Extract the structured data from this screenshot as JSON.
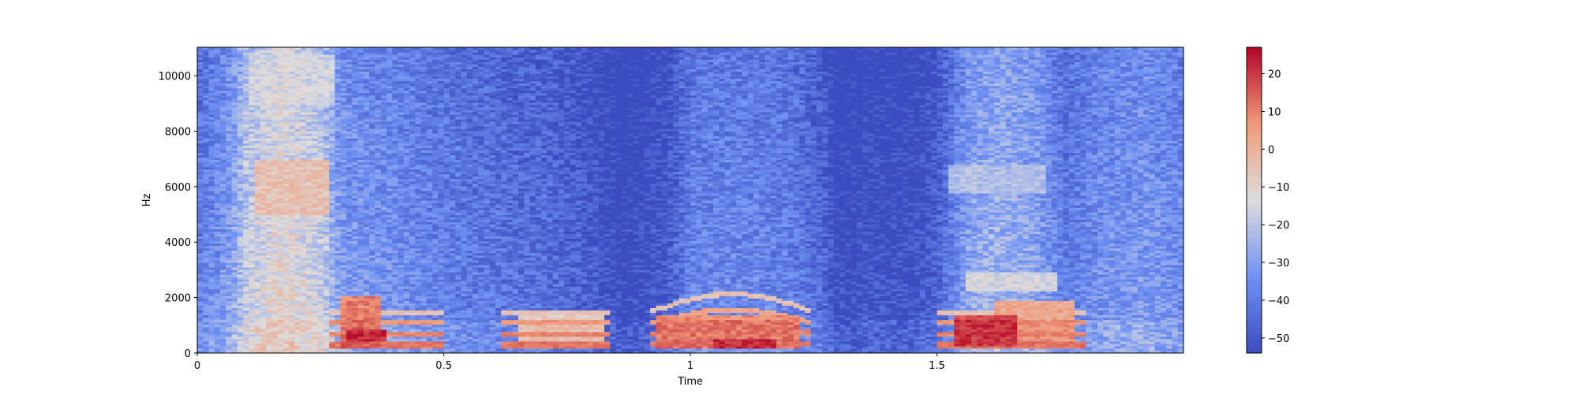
{
  "chart_data": {
    "type": "heatmap",
    "title": "",
    "xlabel": "Time",
    "ylabel": "Hz",
    "xlim": [
      0,
      2.0
    ],
    "ylim": [
      0,
      11025
    ],
    "x_ticks": [
      {
        "value": 0,
        "label": "0"
      },
      {
        "value": 0.5,
        "label": "0.5"
      },
      {
        "value": 1.0,
        "label": "1"
      },
      {
        "value": 1.5,
        "label": "1.5"
      }
    ],
    "y_ticks": [
      {
        "value": 0,
        "label": "0"
      },
      {
        "value": 2000,
        "label": "2000"
      },
      {
        "value": 4000,
        "label": "4000"
      },
      {
        "value": 6000,
        "label": "6000"
      },
      {
        "value": 8000,
        "label": "8000"
      },
      {
        "value": 10000,
        "label": "10000"
      }
    ],
    "colorbar": {
      "colormap": "coolwarm",
      "range": [
        -54,
        27
      ],
      "ticks": [
        {
          "value": 20,
          "label": "20"
        },
        {
          "value": 10,
          "label": "10"
        },
        {
          "value": 0,
          "label": "0"
        },
        {
          "value": -10,
          "label": "−10"
        },
        {
          "value": -20,
          "label": "−20"
        },
        {
          "value": -30,
          "label": "−30"
        },
        {
          "value": -40,
          "label": "−40"
        },
        {
          "value": -50,
          "label": "−50"
        }
      ]
    },
    "time_segments": [
      {
        "t": 0.0,
        "level": -38
      },
      {
        "t": 0.06,
        "level": -30
      },
      {
        "t": 0.1,
        "level": -17
      },
      {
        "t": 0.17,
        "level": -9
      },
      {
        "t": 0.25,
        "level": -15
      },
      {
        "t": 0.29,
        "level": -30
      },
      {
        "t": 0.4,
        "level": -33
      },
      {
        "t": 0.5,
        "level": -37
      },
      {
        "t": 0.6,
        "level": -40
      },
      {
        "t": 0.7,
        "level": -42
      },
      {
        "t": 0.8,
        "level": -47
      },
      {
        "t": 0.86,
        "level": -53
      },
      {
        "t": 0.95,
        "level": -48
      },
      {
        "t": 1.0,
        "level": -36
      },
      {
        "t": 1.1,
        "level": -35
      },
      {
        "t": 1.2,
        "level": -37
      },
      {
        "t": 1.27,
        "level": -44
      },
      {
        "t": 1.3,
        "level": -53
      },
      {
        "t": 1.36,
        "level": -50
      },
      {
        "t": 1.45,
        "level": -51
      },
      {
        "t": 1.5,
        "level": -46
      },
      {
        "t": 1.56,
        "level": -28
      },
      {
        "t": 1.62,
        "level": -23
      },
      {
        "t": 1.7,
        "level": -27
      },
      {
        "t": 1.76,
        "level": -38
      },
      {
        "t": 1.84,
        "level": -32
      },
      {
        "t": 1.92,
        "level": -30
      },
      {
        "t": 2.0,
        "level": -34
      }
    ],
    "hotspots": [
      {
        "t0": 0.12,
        "t1": 0.27,
        "f0": 5000,
        "f1": 7000,
        "value": -5
      },
      {
        "t0": 0.1,
        "t1": 0.28,
        "f0": 9000,
        "f1": 10800,
        "value": -16
      },
      {
        "t0": 0.29,
        "t1": 0.37,
        "f0": 200,
        "f1": 2100,
        "value": 10
      },
      {
        "t0": 0.3,
        "t1": 0.38,
        "f0": 400,
        "f1": 900,
        "value": 18
      },
      {
        "t0": 0.65,
        "t1": 0.82,
        "f0": 200,
        "f1": 1400,
        "value": -8
      },
      {
        "t0": 0.93,
        "t1": 1.22,
        "f0": 150,
        "f1": 1400,
        "value": 8
      },
      {
        "t0": 1.05,
        "t1": 1.18,
        "f0": 200,
        "f1": 500,
        "value": 18
      },
      {
        "t0": 1.53,
        "t1": 1.66,
        "f0": 250,
        "f1": 1400,
        "value": 17
      },
      {
        "t0": 1.62,
        "t1": 1.78,
        "f0": 200,
        "f1": 1900,
        "value": 3
      },
      {
        "t0": 1.56,
        "t1": 1.74,
        "f0": 2200,
        "f1": 2900,
        "value": -15
      },
      {
        "t0": 1.52,
        "t1": 1.72,
        "f0": 5800,
        "f1": 6800,
        "value": -22
      }
    ],
    "harmonics": [
      {
        "f": 300,
        "value": 8
      },
      {
        "f": 700,
        "value": 6
      },
      {
        "f": 1100,
        "value": 3
      },
      {
        "f": 1500,
        "value": -5
      }
    ],
    "grid": false,
    "legend": "none"
  }
}
